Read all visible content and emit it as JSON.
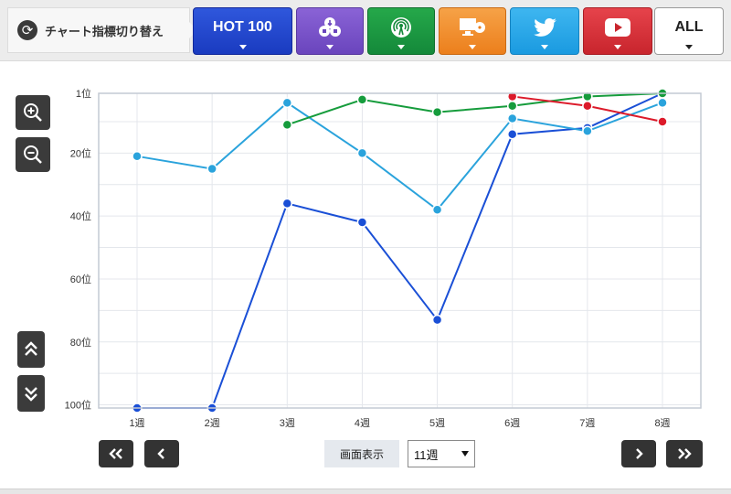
{
  "header": {
    "switch_label": "チャート指標切り替え",
    "hot_label": "HOT 100",
    "all_label": "ALL",
    "buttons": [
      {
        "id": "hot",
        "icon": "hot100-text"
      },
      {
        "id": "download",
        "icon": "download-cloud-icon"
      },
      {
        "id": "radio",
        "icon": "radio-broadcast-icon"
      },
      {
        "id": "pc",
        "icon": "pc-cd-icon"
      },
      {
        "id": "twitter",
        "icon": "twitter-bird-icon"
      },
      {
        "id": "youtube",
        "icon": "youtube-play-icon"
      },
      {
        "id": "all",
        "icon": "all-text"
      }
    ]
  },
  "controls": {
    "display_label": "画面表示",
    "display_value": "11週"
  },
  "chart_data": {
    "type": "line",
    "categories": [
      "1週",
      "2週",
      "3週",
      "4週",
      "5週",
      "6週",
      "7週",
      "8週"
    ],
    "y_ticks": [
      "1位",
      "20位",
      "40位",
      "60位",
      "80位",
      "100位"
    ],
    "y_tick_values": [
      1,
      20,
      40,
      60,
      80,
      100
    ],
    "ylim": [
      1,
      101
    ],
    "y_inverted": true,
    "grid": true,
    "series": [
      {
        "color": "#1a4fd6",
        "values": [
          101,
          101,
          36,
          42,
          73,
          14,
          12,
          1
        ]
      },
      {
        "color": "#2aa3dc",
        "values": [
          21,
          25,
          4,
          20,
          38,
          9,
          13,
          4
        ]
      },
      {
        "color": "#169c3c",
        "values": [
          null,
          null,
          11,
          3,
          7,
          5,
          2,
          1
        ]
      },
      {
        "color": "#dc1a2a",
        "values": [
          null,
          null,
          null,
          null,
          null,
          2,
          5,
          10
        ]
      }
    ]
  }
}
